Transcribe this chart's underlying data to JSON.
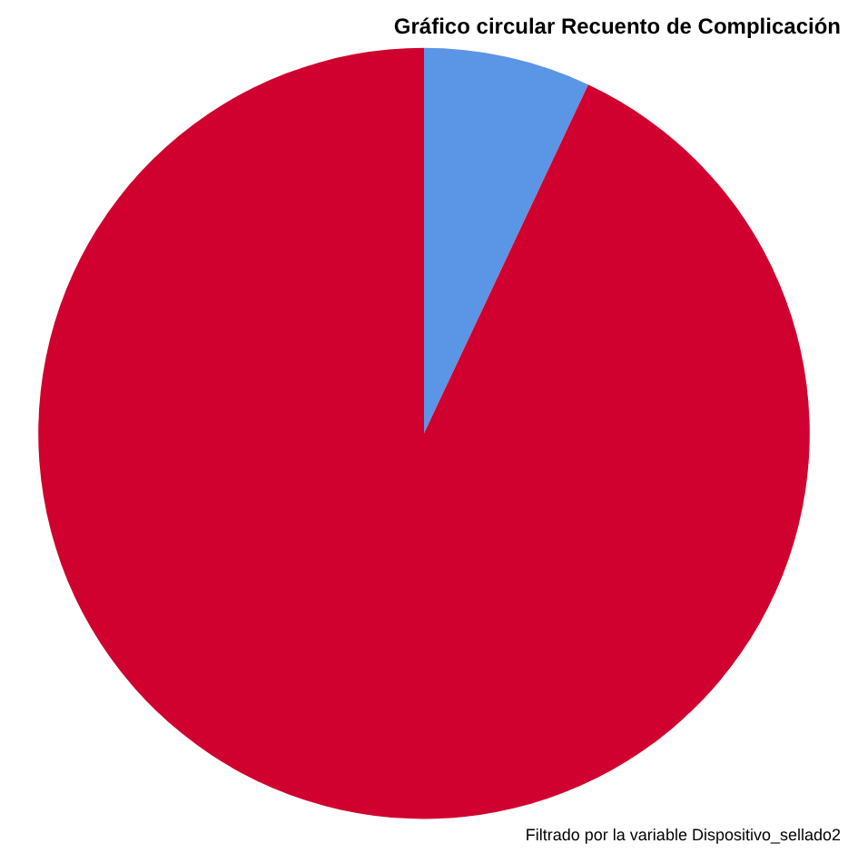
{
  "chart_data": {
    "type": "pie",
    "title": "Gráfico circular Recuento de Complicación",
    "categories": [
      null,
      null
    ],
    "values": [
      7,
      93
    ],
    "colors": [
      "#5b95e5",
      "#d0002f"
    ],
    "annotations": [
      "Filtrado por la variable Dispositivo_sellado2"
    ],
    "legend": false
  }
}
